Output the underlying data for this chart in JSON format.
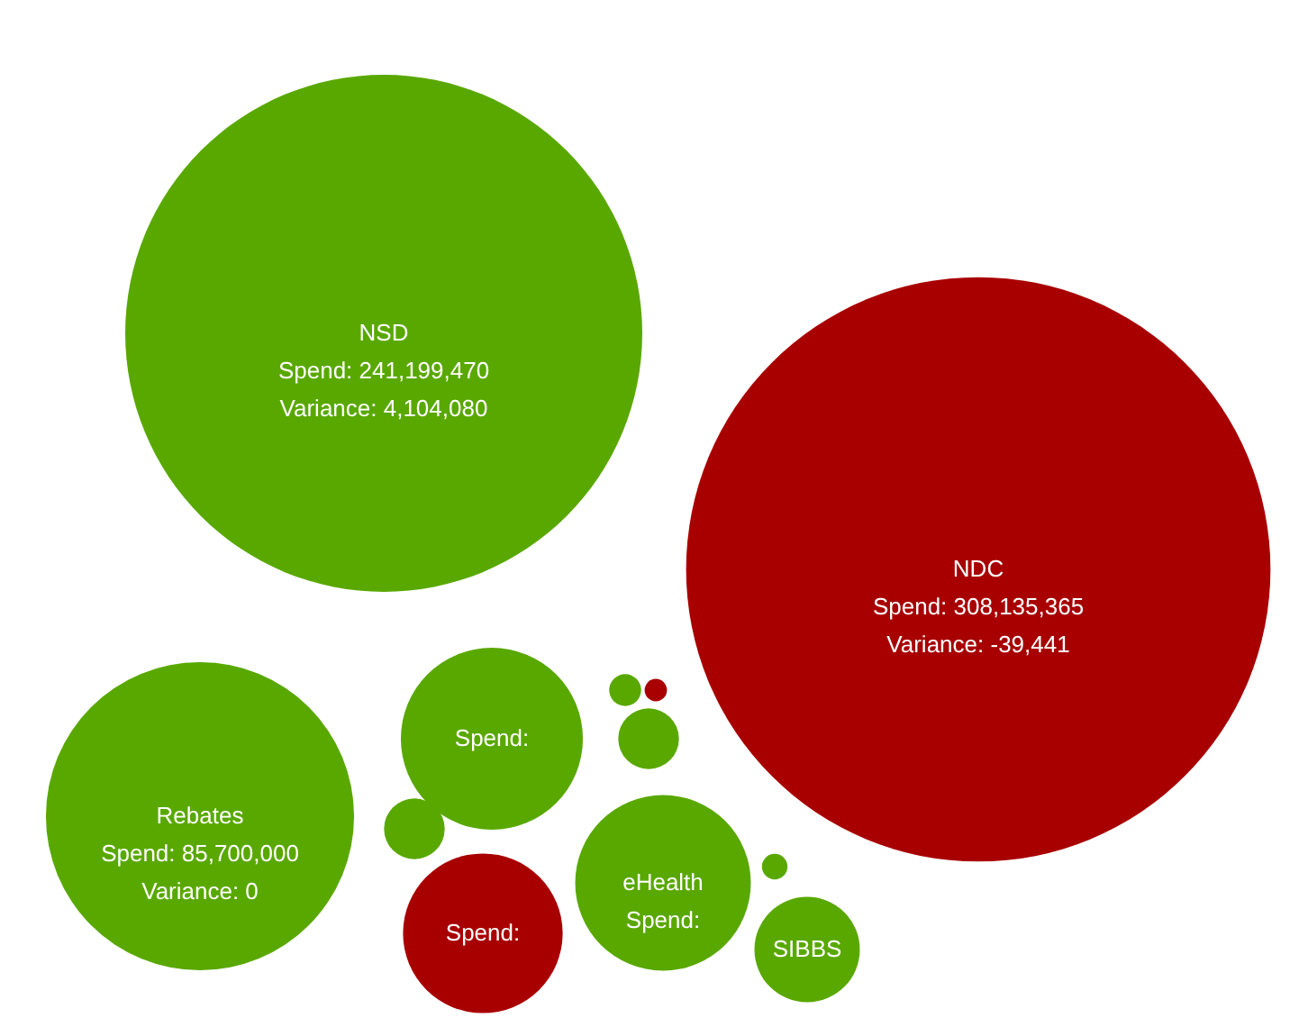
{
  "chart_data": {
    "type": "other",
    "categories": [
      "NSD",
      "NDC",
      "Rebates",
      null,
      null,
      "eHealth",
      "SIBBS",
      null,
      null,
      null,
      null,
      null
    ],
    "values": [
      241199470,
      308135365,
      85700000,
      null,
      null,
      null,
      null,
      null,
      null,
      null,
      null,
      null
    ],
    "value_labels": [
      "Spend: 241,199,470\nVariance: 4,104,080",
      "Spend: 308,135,365\nVariance: -39,441",
      "Spend: 85,700,000\nVariance: 0",
      "Spend:",
      "Spend:",
      "Spend:",
      null,
      null,
      null,
      null,
      null,
      null
    ],
    "colors": [
      "#59a800",
      "#a80000",
      "#59a800",
      "#59a800",
      "#a80000",
      "#59a800",
      "#59a800",
      "#59a800",
      "#59a800",
      "#a80000",
      "#59a800",
      "#59a800"
    ]
  }
}
